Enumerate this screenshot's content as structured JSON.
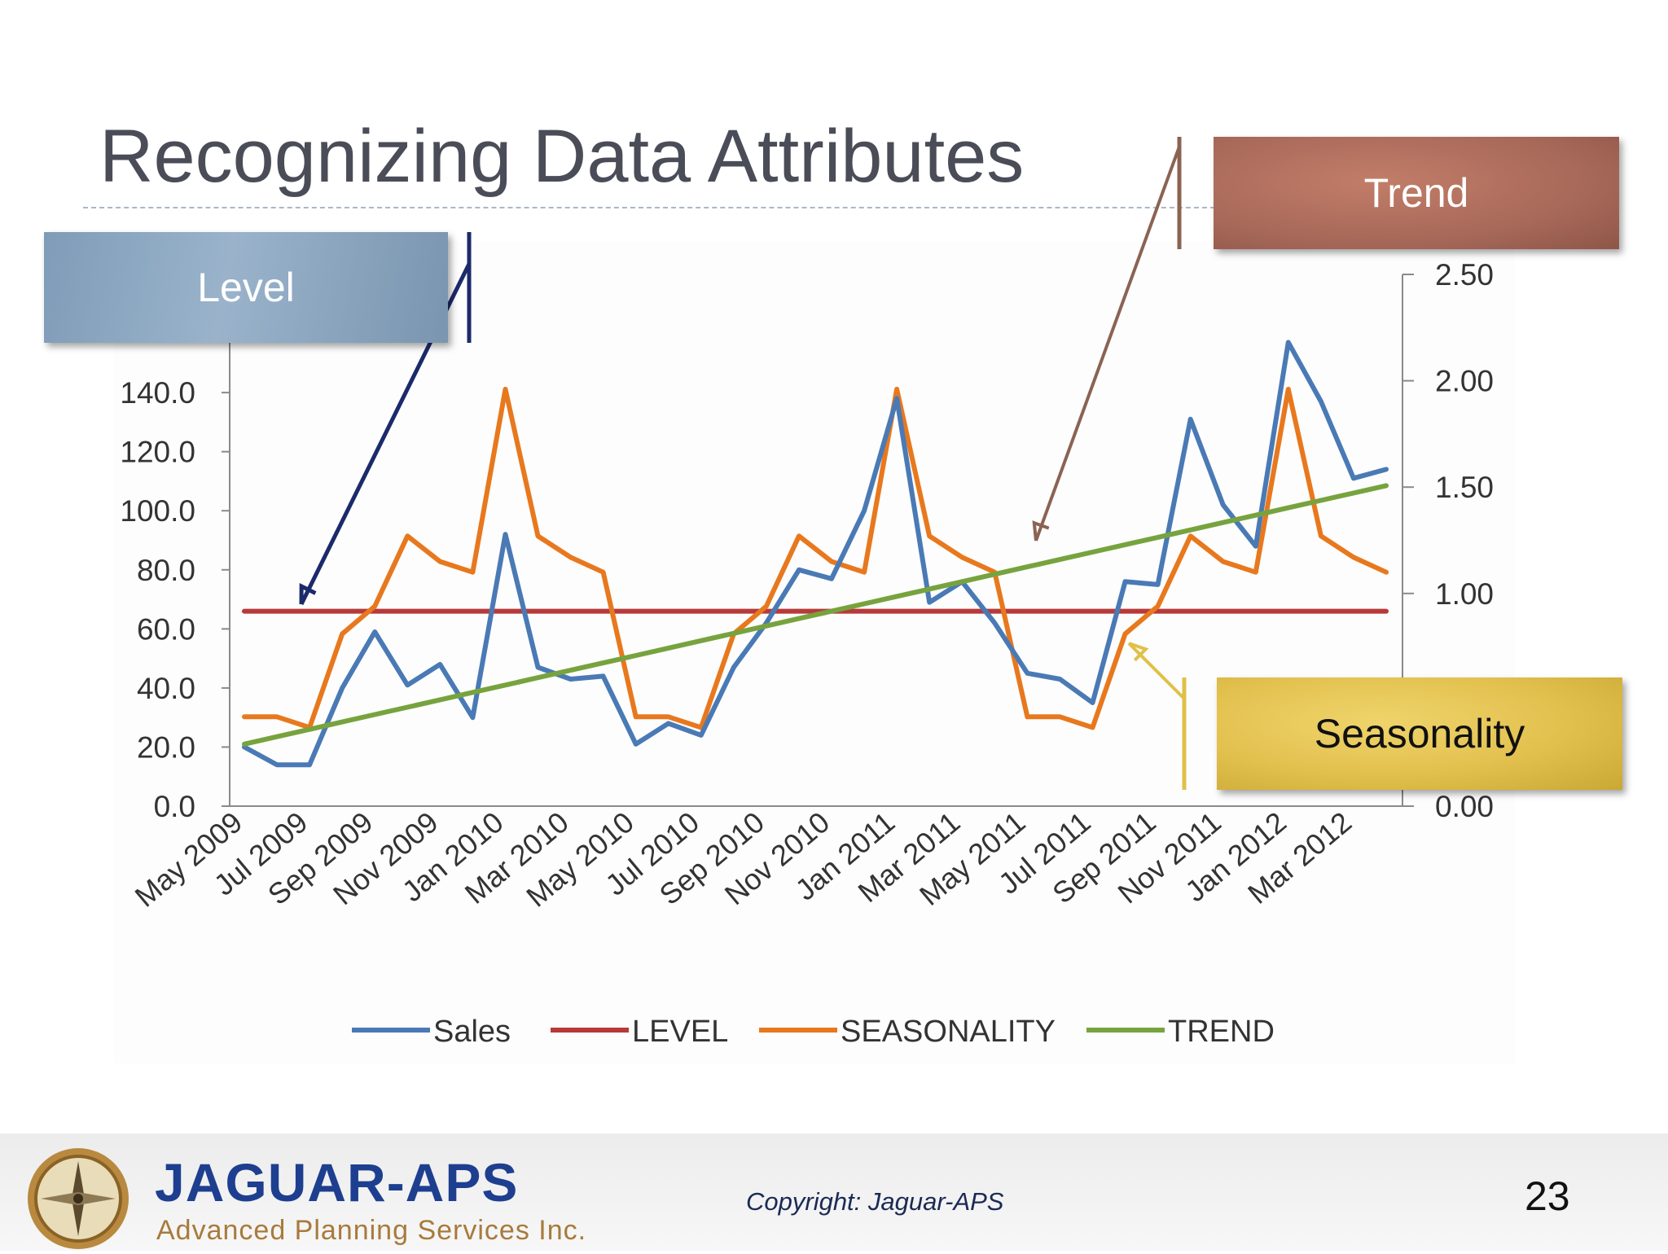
{
  "slide": {
    "title": "Recognizing Data Attributes",
    "callouts": {
      "level": "Level",
      "trend": "Trend",
      "seasonality": "Seasonality"
    },
    "footer": {
      "company": "JAGUAR-APS",
      "tagline": "Advanced Planning Services Inc.",
      "copyright": "Copyright: Jaguar-APS",
      "page_number": "23"
    }
  },
  "chart_data": {
    "type": "line",
    "title": "",
    "x_tick_labels": [
      "May 2009",
      "Jul 2009",
      "Sep 2009",
      "Nov 2009",
      "Jan 2010",
      "Mar 2010",
      "May 2010",
      "Jul 2010",
      "Sep 2010",
      "Nov 2010",
      "Jan 2011",
      "Mar 2011",
      "May 2011",
      "Jul 2011",
      "Sep 2011",
      "Nov 2011",
      "Jan 2012",
      "Mar 2012"
    ],
    "x_months": [
      "May 2009",
      "Jun 2009",
      "Jul 2009",
      "Aug 2009",
      "Sep 2009",
      "Oct 2009",
      "Nov 2009",
      "Dec 2009",
      "Jan 2010",
      "Feb 2010",
      "Mar 2010",
      "Apr 2010",
      "May 2010",
      "Jun 2010",
      "Jul 2010",
      "Aug 2010",
      "Sep 2010",
      "Oct 2010",
      "Nov 2010",
      "Dec 2010",
      "Jan 2011",
      "Feb 2011",
      "Mar 2011",
      "Apr 2011",
      "May 2011",
      "Jun 2011",
      "Jul 2011",
      "Aug 2011",
      "Sep 2011",
      "Oct 2011",
      "Nov 2011",
      "Dec 2011",
      "Jan 2012",
      "Feb 2012",
      "Mar 2012",
      "Apr 2012"
    ],
    "y_left": {
      "ticks": [
        "0.0",
        "20.0",
        "40.0",
        "60.0",
        "80.0",
        "100.0",
        "120.0",
        "140.0"
      ],
      "range": [
        0,
        180
      ]
    },
    "y_right": {
      "ticks": [
        "0.00",
        "1.00",
        "1.50",
        "2.00",
        "2.50"
      ],
      "range": [
        0,
        2.5
      ]
    },
    "legend_position": "bottom",
    "series": [
      {
        "name": "Sales",
        "axis": "left",
        "color": "#4a7ab5",
        "values": [
          20,
          14,
          14,
          40,
          59,
          41,
          48,
          30,
          92,
          47,
          43,
          44,
          21,
          28,
          24,
          47,
          62,
          80,
          77,
          100,
          138,
          69,
          76,
          62,
          45,
          43,
          35,
          76,
          75,
          131,
          102,
          88,
          157,
          137,
          111,
          114
        ]
      },
      {
        "name": "LEVEL",
        "axis": "left",
        "color": "#b73a3a",
        "values": [
          66,
          66,
          66,
          66,
          66,
          66,
          66,
          66,
          66,
          66,
          66,
          66,
          66,
          66,
          66,
          66,
          66,
          66,
          66,
          66,
          66,
          66,
          66,
          66,
          66,
          66,
          66,
          66,
          66,
          66,
          66,
          66,
          66,
          66,
          66,
          66
        ]
      },
      {
        "name": "SEASONALITY",
        "axis": "right",
        "color": "#e8781e",
        "values": [
          0.42,
          0.42,
          0.37,
          0.81,
          0.94,
          1.27,
          1.15,
          1.1,
          1.96,
          1.27,
          1.17,
          1.1,
          0.42,
          0.42,
          0.37,
          0.81,
          0.94,
          1.27,
          1.15,
          1.1,
          1.96,
          1.27,
          1.17,
          1.1,
          0.42,
          0.42,
          0.37,
          0.81,
          0.94,
          1.27,
          1.15,
          1.1,
          1.96,
          1.27,
          1.17,
          1.1
        ]
      },
      {
        "name": "TREND",
        "axis": "left",
        "color": "#77a33e",
        "values": [
          21,
          23.5,
          26,
          28.5,
          31,
          33.5,
          36,
          38.5,
          41,
          43.5,
          46,
          48.5,
          51,
          53.5,
          56,
          58.5,
          61,
          63.5,
          66,
          68.5,
          71,
          73.5,
          76,
          78.5,
          81,
          83.5,
          86,
          88.5,
          91,
          93.5,
          96,
          98.5,
          101,
          103.5,
          106,
          108.5
        ]
      }
    ]
  }
}
